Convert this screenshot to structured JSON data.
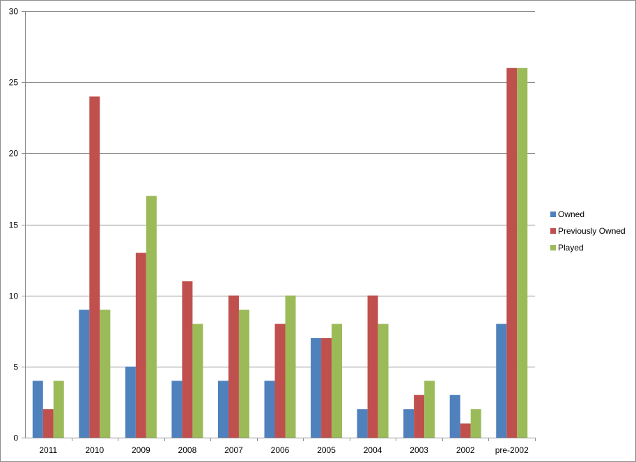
{
  "chart_data": {
    "type": "bar",
    "title": "",
    "xlabel": "",
    "ylabel": "",
    "ylim": [
      0,
      30
    ],
    "yticks": [
      0,
      5,
      10,
      15,
      20,
      25,
      30
    ],
    "grid": true,
    "legend_position": "right",
    "categories": [
      "2011",
      "2010",
      "2009",
      "2008",
      "2007",
      "2006",
      "2005",
      "2004",
      "2003",
      "2002",
      "pre-2002"
    ],
    "series": [
      {
        "name": "Owned",
        "color": "#4f81bd",
        "values": [
          4,
          9,
          5,
          4,
          4,
          4,
          7,
          2,
          2,
          3,
          8
        ]
      },
      {
        "name": "Previously Owned",
        "color": "#c0504d",
        "values": [
          2,
          24,
          13,
          11,
          10,
          8,
          7,
          10,
          3,
          1,
          26
        ]
      },
      {
        "name": "Played",
        "color": "#9bbb59",
        "values": [
          4,
          9,
          17,
          8,
          9,
          10,
          8,
          8,
          4,
          2,
          26
        ]
      }
    ]
  }
}
